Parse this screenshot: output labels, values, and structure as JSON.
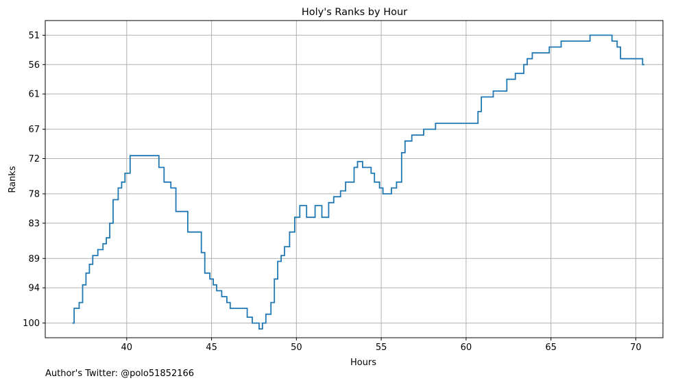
{
  "chart_data": {
    "type": "line",
    "title": "Holy's Ranks by Hour",
    "xlabel": "Hours",
    "ylabel": "Ranks",
    "xlim": [
      35.2,
      71.6
    ],
    "ylim": [
      102.5,
      48.5
    ],
    "y_inverted": true,
    "grid": true,
    "x_ticks": [
      40,
      45,
      50,
      55,
      60,
      65,
      70
    ],
    "y_ticks": [
      51,
      56,
      61,
      67,
      72,
      78,
      83,
      89,
      94,
      100
    ],
    "line_color": "#1f77b4",
    "step": "post",
    "series": [
      {
        "x": [
          36.8,
          36.9,
          37.2,
          37.4,
          37.6,
          37.8,
          38.0,
          38.3,
          38.6,
          38.8,
          39.0,
          39.2,
          39.5,
          39.7,
          39.9,
          40.2,
          41.6,
          41.9,
          42.2,
          42.6,
          42.9,
          43.6,
          44.4,
          44.6,
          44.9,
          45.1,
          45.3,
          45.6,
          45.9,
          46.1,
          47.1,
          47.4,
          47.8,
          48.0,
          48.2,
          48.5,
          48.7,
          48.9,
          49.1,
          49.3,
          49.6,
          49.9,
          50.2,
          50.6,
          51.1,
          51.5,
          51.9,
          52.2,
          52.6,
          52.9,
          53.4,
          53.6,
          53.9,
          54.4,
          54.6,
          54.9,
          55.1,
          55.6,
          55.9,
          56.2,
          56.4,
          56.8,
          57.5,
          58.2,
          60.7,
          60.9,
          61.6,
          62.4,
          62.9,
          63.4,
          63.6,
          63.9,
          64.9,
          65.6,
          67.3,
          68.6,
          68.9,
          69.1,
          70.4,
          70.5
        ],
        "y": [
          100,
          97.5,
          96.5,
          93.5,
          91.5,
          90.0,
          88.5,
          87.5,
          86.5,
          85.5,
          83.0,
          79.0,
          77.0,
          76.0,
          74.5,
          71.5,
          71.5,
          73.5,
          76.0,
          77.0,
          81.0,
          84.5,
          88.0,
          91.5,
          92.5,
          93.5,
          94.5,
          95.5,
          96.5,
          97.5,
          99.0,
          100,
          101,
          100,
          98.5,
          96.5,
          92.5,
          89.5,
          88.5,
          87.0,
          84.5,
          82.0,
          80.0,
          82.0,
          80.0,
          82.0,
          79.5,
          78.5,
          77.5,
          76.0,
          73.5,
          72.5,
          73.5,
          74.5,
          76.0,
          77.0,
          78.0,
          77.0,
          76.0,
          71.0,
          69.0,
          68.0,
          67.0,
          66.0,
          64.0,
          61.5,
          60.5,
          58.5,
          57.5,
          56.0,
          55.0,
          54.0,
          53.0,
          52.0,
          51.0,
          52.0,
          53.0,
          55.0,
          56.0,
          56.0
        ]
      }
    ]
  },
  "footer": {
    "credit": "Author's Twitter: @polo51852166"
  }
}
